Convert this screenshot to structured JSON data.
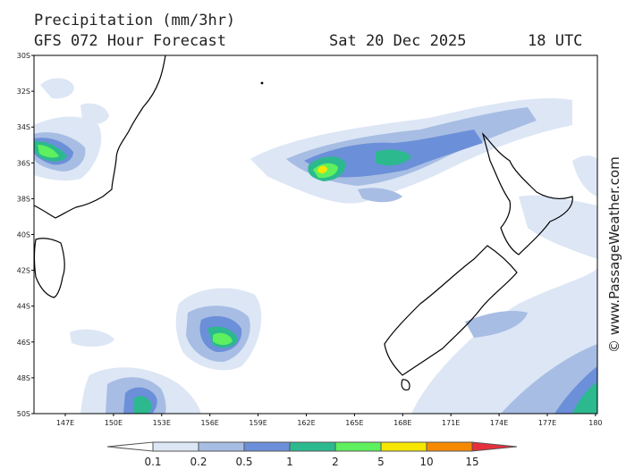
{
  "header": {
    "title": "Precipitation (mm/3hr)",
    "forecast": "GFS 072 Hour Forecast",
    "date": "Sat 20 Dec 2025",
    "time": "18 UTC"
  },
  "credit": "© www.PassageWeather.com",
  "map": {
    "lat_labels": [
      "30S",
      "32S",
      "34S",
      "36S",
      "38S",
      "40S",
      "42S",
      "44S",
      "46S",
      "48S",
      "50S"
    ],
    "lon_labels": [
      "147E",
      "150E",
      "153E",
      "156E",
      "159E",
      "162E",
      "165E",
      "168E",
      "171E",
      "174E",
      "177E",
      "180"
    ]
  },
  "legend": {
    "labels": [
      "0.1",
      "0.2",
      "0.5",
      "1",
      "2",
      "5",
      "10",
      "15"
    ],
    "colors": [
      "#ffffff",
      "#dce6f5",
      "#a7bde3",
      "#6b8fd8",
      "#2cb98e",
      "#5ef05e",
      "#f5e500",
      "#f58a00",
      "#e8303c"
    ]
  }
}
